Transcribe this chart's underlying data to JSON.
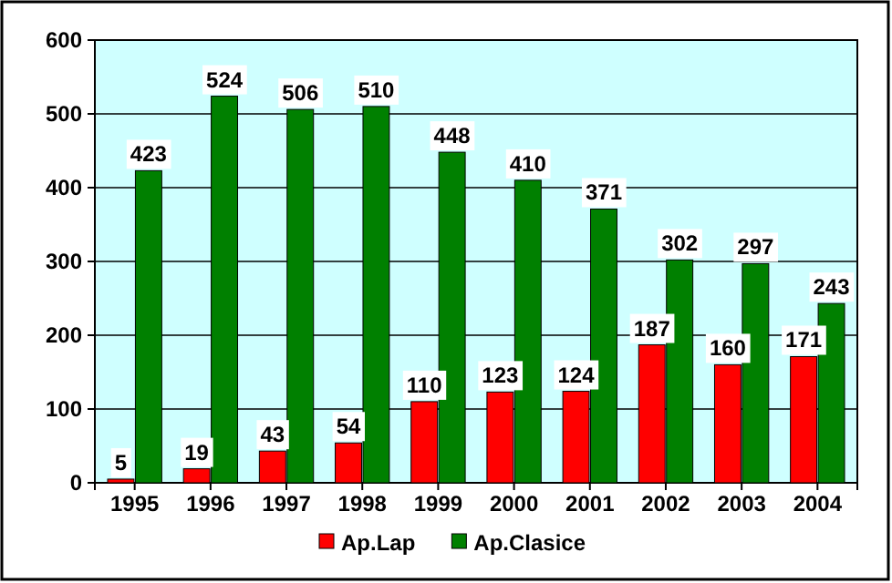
{
  "chart_data": {
    "type": "bar",
    "categories": [
      "1995",
      "1996",
      "1997",
      "1998",
      "1999",
      "2000",
      "2001",
      "2002",
      "2003",
      "2004"
    ],
    "series": [
      {
        "name": "Ap.Lap",
        "color": "#ff0000",
        "values": [
          5,
          19,
          43,
          54,
          110,
          123,
          124,
          187,
          160,
          171
        ]
      },
      {
        "name": "Ap.Clasice",
        "color": "#008000",
        "values": [
          423,
          524,
          506,
          510,
          448,
          410,
          371,
          302,
          297,
          243
        ]
      }
    ],
    "ylim": [
      0,
      600
    ],
    "yticks": [
      0,
      100,
      200,
      300,
      400,
      500,
      600
    ],
    "grid": "y",
    "legend": "bottom",
    "data_labels": true
  }
}
